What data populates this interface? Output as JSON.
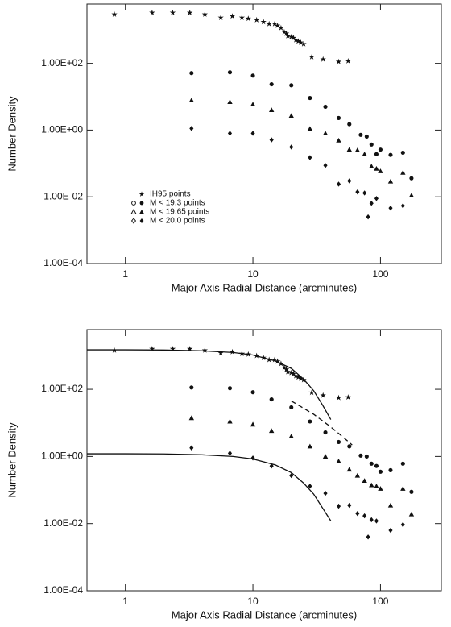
{
  "chart_data": [
    {
      "type": "scatter",
      "x_label": "Major Axis Radial Distance (arcminutes)",
      "y_label": "Number Density",
      "xscale": "log",
      "yscale": "log",
      "legend": true,
      "legend_position": "lower left",
      "xlim": [
        0.5,
        300
      ],
      "xticks": [
        1,
        10,
        100
      ],
      "ylim": [
        0.0001,
        6000
      ],
      "yticks": [
        {
          "value": 0.0001,
          "label": "1.00E-04"
        },
        {
          "value": 0.01,
          "label": "1.00E-02"
        },
        {
          "value": 1,
          "label": "1.00E+00"
        },
        {
          "value": 100,
          "label": "1.00E+02"
        }
      ],
      "series": [
        {
          "name": "IH95 points",
          "marker": "star",
          "color": "#111111",
          "x": [
            0.82,
            1.62,
            2.35,
            3.2,
            4.2,
            5.6,
            6.9,
            8.2,
            9.2,
            10.7,
            12.1,
            13.4,
            14.8,
            15.6,
            16.6,
            17.6,
            18.3,
            18.8,
            20,
            20.8,
            21.7,
            22.7,
            23.7,
            25,
            28.9,
            35.5,
            47,
            55.8
          ],
          "values": [
            2950,
            3300,
            3300,
            3300,
            2950,
            2350,
            2600,
            2350,
            2200,
            2000,
            1750,
            1520,
            1520,
            1350,
            1150,
            870,
            780,
            660,
            620,
            580,
            500,
            460,
            420,
            380,
            155,
            132,
            112,
            117
          ]
        },
        {
          "name": "M < 19.3 points",
          "marker": "circle",
          "color": "#111111",
          "x": [
            3.3,
            6.6,
            10,
            14,
            20,
            28,
            37,
            47,
            57,
            70,
            78,
            85,
            93,
            100,
            120,
            150,
            175
          ],
          "values": [
            51,
            54,
            43,
            23.6,
            22,
            9.2,
            5,
            2.3,
            1.5,
            0.72,
            0.64,
            0.37,
            0.19,
            0.26,
            0.18,
            0.21,
            0.036
          ]
        },
        {
          "name": "M < 19.65 points",
          "marker": "triangle",
          "color": "#111111",
          "x": [
            3.3,
            6.6,
            10,
            14,
            20,
            28,
            37,
            47,
            57,
            66,
            75,
            85,
            93,
            100,
            120,
            150,
            175
          ],
          "values": [
            7.8,
            7,
            5.9,
            4,
            2.7,
            1.1,
            0.8,
            0.49,
            0.26,
            0.25,
            0.19,
            0.082,
            0.07,
            0.059,
            0.029,
            0.053,
            0.011
          ]
        },
        {
          "name": "M < 20.0 points",
          "marker": "diamond",
          "color": "#111111",
          "x": [
            3.3,
            6.6,
            10,
            14,
            20,
            28,
            37,
            47,
            57,
            66,
            75,
            80,
            85,
            93,
            120,
            150
          ],
          "values": [
            1.12,
            0.8,
            0.8,
            0.51,
            0.31,
            0.15,
            0.087,
            0.024,
            0.03,
            0.014,
            0.013,
            0.0025,
            0.0064,
            0.0089,
            0.0046,
            0.0054
          ]
        }
      ]
    },
    {
      "type": "scatter",
      "x_label": "Major Axis Radial Distance (arcminutes)",
      "y_label": "Number Density",
      "xscale": "log",
      "yscale": "log",
      "legend": false,
      "xlim": [
        0.5,
        300
      ],
      "xticks": [
        1,
        10,
        100
      ],
      "ylim": [
        0.0001,
        6000
      ],
      "yticks": [
        {
          "value": 0.0001,
          "label": "1.00E-04"
        },
        {
          "value": 0.01,
          "label": "1.00E-02"
        },
        {
          "value": 1,
          "label": "1.00E+00"
        },
        {
          "value": 100,
          "label": "1.00E+02"
        }
      ],
      "series": [
        {
          "marker": "star",
          "color": "#111111",
          "x": [
            0.82,
            1.62,
            2.35,
            3.2,
            4.2,
            5.6,
            6.9,
            8.2,
            9.2,
            10.7,
            12.1,
            13.4,
            14.8,
            15.6,
            16.6,
            17.6,
            18.3,
            18.8,
            20,
            20.8,
            21.7,
            22.7,
            23.7,
            25,
            28.9,
            35.5,
            47,
            55.8
          ],
          "values": [
            1450,
            1600,
            1600,
            1600,
            1450,
            1200,
            1300,
            1150,
            1100,
            1000,
            870,
            760,
            760,
            680,
            580,
            440,
            390,
            330,
            310,
            290,
            250,
            230,
            210,
            190,
            80,
            66,
            56,
            58
          ]
        },
        {
          "marker": "circle",
          "color": "#111111",
          "x": [
            3.3,
            6.6,
            10,
            14,
            20,
            28,
            37,
            47,
            57,
            70,
            78,
            85,
            93,
            100,
            120,
            150,
            175
          ],
          "values": [
            113,
            108,
            82,
            50,
            29,
            11,
            5.2,
            2.7,
            2,
            1.06,
            1,
            0.61,
            0.52,
            0.35,
            0.39,
            0.61,
            0.088
          ]
        },
        {
          "marker": "triangle",
          "color": "#111111",
          "x": [
            3.3,
            6.6,
            10,
            14,
            20,
            28,
            37,
            47,
            57,
            66,
            75,
            85,
            93,
            100,
            120,
            150,
            175
          ],
          "values": [
            14,
            11,
            9,
            5.8,
            4,
            2,
            1,
            0.72,
            0.41,
            0.27,
            0.19,
            0.14,
            0.13,
            0.11,
            0.035,
            0.11,
            0.019
          ]
        },
        {
          "marker": "diamond",
          "color": "#111111",
          "x": [
            3.3,
            6.6,
            10,
            14,
            20,
            28,
            37,
            47,
            57,
            66,
            75,
            80,
            85,
            93,
            120,
            150
          ],
          "values": [
            1.8,
            1.25,
            0.9,
            0.52,
            0.27,
            0.13,
            0.08,
            0.033,
            0.035,
            0.02,
            0.017,
            0.004,
            0.013,
            0.012,
            0.0063,
            0.0093
          ]
        },
        {
          "line_style": "solid",
          "color": "#111111",
          "x": [
            0.5,
            1,
            2,
            4,
            7,
            10,
            15,
            20,
            25,
            30,
            35,
            40.8
          ],
          "values": [
            1500,
            1500,
            1480,
            1400,
            1250,
            1050,
            700,
            420,
            200,
            90,
            35,
            12.6
          ]
        },
        {
          "line_style": "solid",
          "color": "#111111",
          "x": [
            0.5,
            1,
            2,
            4,
            7,
            10,
            15,
            20,
            25,
            30,
            35,
            40.8
          ],
          "values": [
            1.2,
            1.2,
            1.19,
            1.12,
            1.0,
            0.84,
            0.56,
            0.33,
            0.16,
            0.075,
            0.03,
            0.012
          ]
        },
        {
          "line_style": "dashed",
          "color": "#111111",
          "x": [
            20,
            30,
            40,
            50,
            60
          ],
          "values": [
            45,
            18,
            8,
            4,
            2.2
          ]
        }
      ]
    }
  ]
}
